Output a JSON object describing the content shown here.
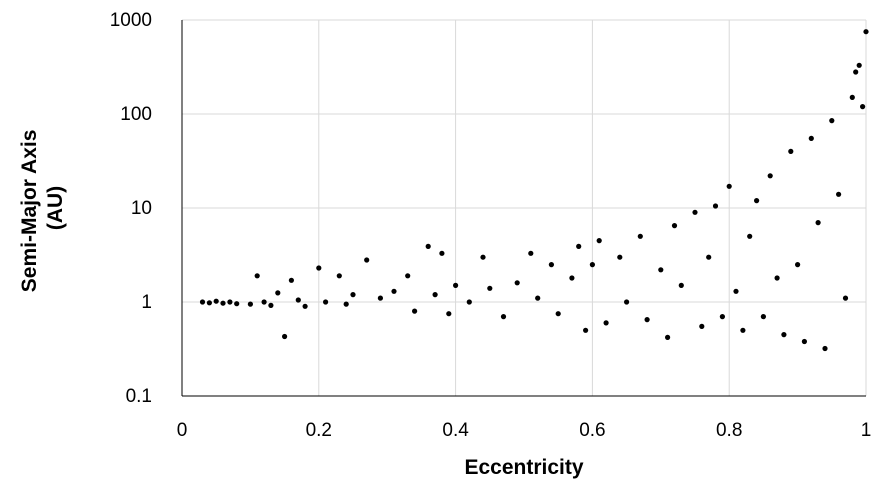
{
  "chart_data": {
    "type": "scatter",
    "title": "",
    "xlabel": "Eccentricity",
    "ylabel": "Semi-Major Axis (AU)",
    "ylabel_lines": [
      "Semi-Major Axis",
      "(AU)"
    ],
    "xlim": [
      0,
      1
    ],
    "ylim": [
      0.1,
      1000
    ],
    "yscale": "log",
    "grid": true,
    "legend": "none",
    "x_ticks": [
      "0",
      "0.2",
      "0.4",
      "0.6",
      "0.8",
      "1"
    ],
    "x_tick_values": [
      0,
      0.2,
      0.4,
      0.6,
      0.8,
      1
    ],
    "y_ticks": [
      "0.1",
      "1",
      "10",
      "100",
      "1000"
    ],
    "y_tick_values": [
      0.1,
      1,
      10,
      100,
      1000
    ],
    "colors": {
      "marker": "#000000",
      "grid": "#d9d9d9",
      "axis": "#000000"
    },
    "points": [
      [
        0.03,
        1.0
      ],
      [
        0.04,
        0.98
      ],
      [
        0.05,
        1.02
      ],
      [
        0.06,
        0.97
      ],
      [
        0.07,
        1.0
      ],
      [
        0.08,
        0.96
      ],
      [
        0.1,
        0.95
      ],
      [
        0.11,
        1.9
      ],
      [
        0.12,
        1.0
      ],
      [
        0.13,
        0.92
      ],
      [
        0.14,
        1.25
      ],
      [
        0.15,
        0.43
      ],
      [
        0.16,
        1.7
      ],
      [
        0.17,
        1.05
      ],
      [
        0.18,
        0.9
      ],
      [
        0.2,
        2.3
      ],
      [
        0.21,
        1.0
      ],
      [
        0.23,
        1.9
      ],
      [
        0.24,
        0.95
      ],
      [
        0.25,
        1.2
      ],
      [
        0.27,
        2.8
      ],
      [
        0.29,
        1.1
      ],
      [
        0.31,
        1.3
      ],
      [
        0.33,
        1.9
      ],
      [
        0.34,
        0.8
      ],
      [
        0.36,
        3.9
      ],
      [
        0.37,
        1.2
      ],
      [
        0.38,
        3.3
      ],
      [
        0.39,
        0.75
      ],
      [
        0.4,
        1.5
      ],
      [
        0.42,
        1.0
      ],
      [
        0.44,
        3.0
      ],
      [
        0.45,
        1.4
      ],
      [
        0.47,
        0.7
      ],
      [
        0.49,
        1.6
      ],
      [
        0.51,
        3.3
      ],
      [
        0.52,
        1.1
      ],
      [
        0.54,
        2.5
      ],
      [
        0.55,
        0.75
      ],
      [
        0.57,
        1.8
      ],
      [
        0.58,
        3.9
      ],
      [
        0.59,
        0.5
      ],
      [
        0.6,
        2.5
      ],
      [
        0.61,
        4.5
      ],
      [
        0.62,
        0.6
      ],
      [
        0.64,
        3.0
      ],
      [
        0.65,
        1.0
      ],
      [
        0.67,
        5.0
      ],
      [
        0.68,
        0.65
      ],
      [
        0.7,
        2.2
      ],
      [
        0.71,
        0.42
      ],
      [
        0.72,
        6.5
      ],
      [
        0.73,
        1.5
      ],
      [
        0.75,
        9.0
      ],
      [
        0.76,
        0.55
      ],
      [
        0.77,
        3.0
      ],
      [
        0.78,
        10.5
      ],
      [
        0.79,
        0.7
      ],
      [
        0.8,
        17.0
      ],
      [
        0.81,
        1.3
      ],
      [
        0.82,
        0.5
      ],
      [
        0.83,
        5.0
      ],
      [
        0.84,
        12.0
      ],
      [
        0.85,
        0.7
      ],
      [
        0.86,
        22.0
      ],
      [
        0.87,
        1.8
      ],
      [
        0.88,
        0.45
      ],
      [
        0.89,
        40.0
      ],
      [
        0.9,
        2.5
      ],
      [
        0.91,
        0.38
      ],
      [
        0.92,
        55.0
      ],
      [
        0.93,
        7.0
      ],
      [
        0.94,
        0.32
      ],
      [
        0.95,
        85.0
      ],
      [
        0.96,
        14.0
      ],
      [
        0.97,
        1.1
      ],
      [
        0.98,
        150.0
      ],
      [
        0.985,
        280.0
      ],
      [
        0.99,
        330.0
      ],
      [
        0.995,
        120.0
      ],
      [
        1.0,
        750.0
      ]
    ]
  }
}
